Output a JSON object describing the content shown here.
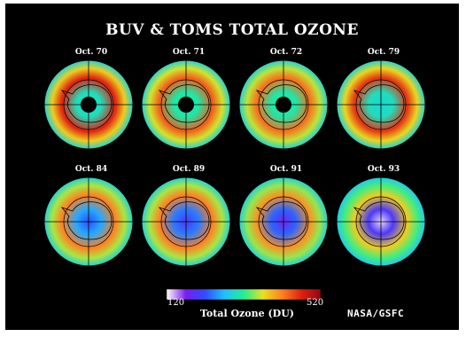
{
  "chart_data": {
    "type": "heatmap",
    "title": "BUV & TOMS TOTAL OZONE",
    "colorbar": {
      "label": "Total Ozone (DU)",
      "min": 120,
      "max": 520,
      "ticks": [
        "120",
        "520"
      ],
      "colors": [
        "#ffffff",
        "#7a1cf0",
        "#2f4dff",
        "#20c0ff",
        "#20f090",
        "#e8e020",
        "#ff8020",
        "#e02010",
        "#900810"
      ]
    },
    "panels": [
      {
        "label": "Oct. 70",
        "center_ozone": null,
        "hole_ring_ozone": 300,
        "collar_ozone": 470,
        "outer_ozone": 290,
        "no_data_center": true
      },
      {
        "label": "Oct. 71",
        "center_ozone": null,
        "hole_ring_ozone": 310,
        "collar_ozone": 440,
        "outer_ozone": 290,
        "no_data_center": true
      },
      {
        "label": "Oct. 72",
        "center_ozone": null,
        "hole_ring_ozone": 310,
        "collar_ozone": 430,
        "outer_ozone": 290,
        "no_data_center": true
      },
      {
        "label": "Oct. 79",
        "center_ozone": 290,
        "hole_ring_ozone": 300,
        "collar_ozone": 460,
        "outer_ozone": 290,
        "no_data_center": false
      },
      {
        "label": "Oct. 84",
        "center_ozone": 220,
        "hole_ring_ozone": 260,
        "collar_ozone": 420,
        "outer_ozone": 290,
        "no_data_center": false
      },
      {
        "label": "Oct. 89",
        "center_ozone": 200,
        "hole_ring_ozone": 240,
        "collar_ozone": 420,
        "outer_ozone": 290,
        "no_data_center": false
      },
      {
        "label": "Oct. 91",
        "center_ozone": 180,
        "hole_ring_ozone": 230,
        "collar_ozone": 410,
        "outer_ozone": 290,
        "no_data_center": false
      },
      {
        "label": "Oct. 93",
        "center_ozone": 130,
        "hole_ring_ozone": 200,
        "collar_ozone": 380,
        "outer_ozone": 280,
        "no_data_center": false
      }
    ]
  },
  "credit": "NASA/GSFC"
}
